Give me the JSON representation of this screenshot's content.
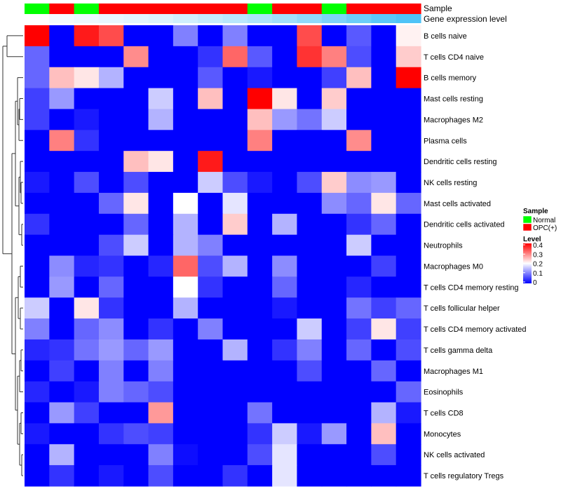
{
  "chart_data": {
    "type": "heatmap",
    "title": "",
    "annotation_tracks": [
      "Sample",
      "Gene expression level"
    ],
    "sample_groups": [
      "Normal",
      "OPC(+)",
      "Normal",
      "OPC(+)",
      "OPC(+)",
      "OPC(+)",
      "OPC(+)",
      "OPC(+)",
      "OPC(+)",
      "Normal",
      "OPC(+)",
      "OPC(+)",
      "Normal",
      "OPC(+)",
      "OPC(+)",
      "OPC(+)"
    ],
    "expression_levels": [
      0.0,
      0.02,
      0.03,
      0.04,
      0.05,
      0.06,
      0.08,
      0.1,
      0.12,
      0.14,
      0.16,
      0.19,
      0.22,
      0.25,
      0.28,
      0.3
    ],
    "rows": [
      "B cells naive",
      "T cells CD4 naive",
      "B cells memory",
      "Mast cells resting",
      "Macrophages M2",
      "Plasma cells",
      "Dendritic cells resting",
      "NK cells resting",
      "Mast cells activated",
      "Dendritic cells activated",
      "Neutrophils",
      "Macrophages M0",
      "T cells CD4 memory resting",
      "T cells follicular helper",
      "T cells CD4 memory activated",
      "T cells gamma delta",
      "Macrophages M1",
      "Eosinophils",
      "T cells CD8",
      "Monocytes",
      "NK cells activated",
      "T cells regulatory  Tregs"
    ],
    "values": [
      [
        0.4,
        0.0,
        0.38,
        0.34,
        0.0,
        0.0,
        0.1,
        0.0,
        0.1,
        0.0,
        0.0,
        0.34,
        0.0,
        0.07,
        0.0,
        0.21
      ],
      [
        0.08,
        0.0,
        0.0,
        0.0,
        0.29,
        0.0,
        0.0,
        0.04,
        0.32,
        0.07,
        0.0,
        0.36,
        0.3,
        0.06,
        0.0,
        0.24
      ],
      [
        0.08,
        0.25,
        0.22,
        0.14,
        0.0,
        0.0,
        0.0,
        0.07,
        0.0,
        0.02,
        0.0,
        0.0,
        0.05,
        0.25,
        0.0,
        0.4
      ],
      [
        0.05,
        0.12,
        0.0,
        0.0,
        0.0,
        0.16,
        0.0,
        0.25,
        0.0,
        0.4,
        0.22,
        0.0,
        0.24,
        0.0,
        0.0,
        0.0
      ],
      [
        0.05,
        0.0,
        0.02,
        0.0,
        0.0,
        0.14,
        0.0,
        0.0,
        0.0,
        0.25,
        0.12,
        0.09,
        0.16,
        0.0,
        0.0,
        0.0
      ],
      [
        0.0,
        0.3,
        0.04,
        0.0,
        0.0,
        0.0,
        0.0,
        0.0,
        0.0,
        0.3,
        0.0,
        0.0,
        0.0,
        0.29,
        0.0,
        0.0
      ],
      [
        0.0,
        0.0,
        0.0,
        0.0,
        0.25,
        0.22,
        0.0,
        0.38,
        0.0,
        0.0,
        0.0,
        0.0,
        0.0,
        0.0,
        0.0,
        0.0
      ],
      [
        0.02,
        0.0,
        0.06,
        0.0,
        0.06,
        0.0,
        0.0,
        0.16,
        0.06,
        0.02,
        0.0,
        0.06,
        0.24,
        0.11,
        0.12,
        0.0
      ],
      [
        0.0,
        0.0,
        0.0,
        0.08,
        0.22,
        0.0,
        0.2,
        0.0,
        0.18,
        0.0,
        0.0,
        0.0,
        0.11,
        0.08,
        0.22,
        0.08
      ],
      [
        0.04,
        0.0,
        0.0,
        0.0,
        0.08,
        0.0,
        0.14,
        0.0,
        0.24,
        0.0,
        0.14,
        0.0,
        0.0,
        0.04,
        0.08,
        0.0
      ],
      [
        0.0,
        0.0,
        0.0,
        0.06,
        0.16,
        0.0,
        0.14,
        0.1,
        0.0,
        0.0,
        0.0,
        0.0,
        0.0,
        0.16,
        0.0,
        0.0
      ],
      [
        0.0,
        0.11,
        0.03,
        0.04,
        0.0,
        0.03,
        0.32,
        0.06,
        0.14,
        0.0,
        0.11,
        0.0,
        0.0,
        0.0,
        0.05,
        0.0
      ],
      [
        0.0,
        0.12,
        0.0,
        0.08,
        0.0,
        0.0,
        0.2,
        0.04,
        0.0,
        0.0,
        0.08,
        0.0,
        0.0,
        0.03,
        0.0,
        0.0
      ],
      [
        0.16,
        0.0,
        0.22,
        0.04,
        0.0,
        0.0,
        0.14,
        0.0,
        0.0,
        0.0,
        0.02,
        0.0,
        0.0,
        0.09,
        0.05,
        0.08
      ],
      [
        0.1,
        0.0,
        0.08,
        0.11,
        0.0,
        0.04,
        0.0,
        0.1,
        0.0,
        0.0,
        0.0,
        0.16,
        0.0,
        0.05,
        0.22,
        0.05
      ],
      [
        0.03,
        0.04,
        0.09,
        0.12,
        0.08,
        0.12,
        0.0,
        0.0,
        0.14,
        0.0,
        0.04,
        0.1,
        0.0,
        0.08,
        0.0,
        0.06
      ],
      [
        0.0,
        0.05,
        0.0,
        0.1,
        0.0,
        0.1,
        0.0,
        0.0,
        0.0,
        0.0,
        0.0,
        0.06,
        0.0,
        0.0,
        0.08,
        0.0
      ],
      [
        0.03,
        0.0,
        0.02,
        0.1,
        0.08,
        0.06,
        0.0,
        0.0,
        0.0,
        0.0,
        0.0,
        0.0,
        0.0,
        0.0,
        0.0,
        0.08
      ],
      [
        0.0,
        0.12,
        0.05,
        0.0,
        0.0,
        0.28,
        0.0,
        0.0,
        0.0,
        0.09,
        0.0,
        0.0,
        0.0,
        0.0,
        0.14,
        0.02
      ],
      [
        0.02,
        0.0,
        0.0,
        0.04,
        0.06,
        0.05,
        0.0,
        0.0,
        0.0,
        0.04,
        0.16,
        0.02,
        0.12,
        0.0,
        0.25,
        0.0
      ],
      [
        0.0,
        0.14,
        0.0,
        0.0,
        0.0,
        0.1,
        0.01,
        0.0,
        0.0,
        0.06,
        0.18,
        0.0,
        0.0,
        0.0,
        0.06,
        0.0
      ],
      [
        0.0,
        0.04,
        0.0,
        0.02,
        0.0,
        0.06,
        0.0,
        0.0,
        0.04,
        0.0,
        0.18,
        0.0,
        0.0,
        0.0,
        0.0,
        0.0
      ]
    ],
    "legend": {
      "sample_title": "Sample",
      "sample_entries": [
        {
          "label": "Normal",
          "color": "#00ff00"
        },
        {
          "label": "OPC(+)",
          "color": "#ff0000"
        }
      ],
      "level_title": "Level",
      "level_ticks": [
        {
          "value": 0.4,
          "label": "0.4"
        },
        {
          "value": 0.3,
          "label": "0.3"
        },
        {
          "value": 0.2,
          "label": "0.2"
        },
        {
          "value": 0.1,
          "label": "0.1"
        },
        {
          "value": 0.0,
          "label": "0"
        }
      ],
      "placement": "right"
    },
    "color_scale": {
      "low": "#0000ff",
      "mid": "#ffffff",
      "high": "#ff0000",
      "range": [
        0,
        0.4
      ],
      "midpoint": 0.2
    },
    "expression_scale": {
      "low": "#ffffff",
      "high": "#4fc3f7"
    }
  }
}
